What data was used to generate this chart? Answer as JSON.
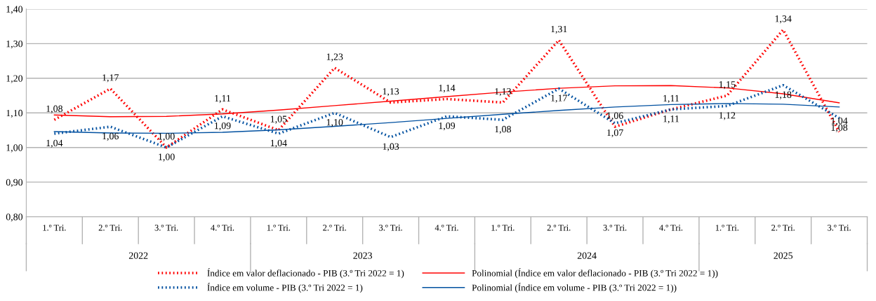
{
  "chart_data": {
    "type": "line",
    "categories": [
      "1.º Tri.",
      "2.º Tri.",
      "3.º Tri.",
      "4.º Tri.",
      "1.º Tri.",
      "2.º Tri.",
      "3.º Tri.",
      "4.º Tri.",
      "1.º Tri.",
      "2.º Tri.",
      "3.º Tri.",
      "4.º Tri.",
      "1.º Tri.",
      "2.º Tri.",
      "3.º Tri."
    ],
    "annotations": [
      "2022",
      "2023",
      "2024",
      "2025"
    ],
    "ylim": [
      0.8,
      1.4
    ],
    "yticks": [
      {
        "value": 0.8,
        "label": "0,80"
      },
      {
        "value": 0.9,
        "label": "0,90"
      },
      {
        "value": 1.0,
        "label": "1,00"
      },
      {
        "value": 1.1,
        "label": "1,10"
      },
      {
        "value": 1.2,
        "label": "1,20"
      },
      {
        "value": 1.3,
        "label": "1,30"
      },
      {
        "value": 1.4,
        "label": "1,40"
      }
    ],
    "grid": "y",
    "legend": "bottom",
    "marker": "none",
    "series": [
      {
        "name": "Índice em valor deflacionado - PIB (3.º Tri 2022 = 1)",
        "color": "#ff0000",
        "line_style": "dotted",
        "values": [
          1.08,
          1.17,
          1.0,
          1.11,
          1.05,
          1.23,
          1.13,
          1.14,
          1.13,
          1.31,
          1.06,
          1.11,
          1.15,
          1.34,
          1.045
        ],
        "value_labels": [
          "1,08",
          "1,17",
          "1,00",
          "1,11",
          "1,05",
          "1,23",
          "1,13",
          "1,14",
          "1,13",
          "1,31",
          "1,06",
          "1,11",
          "1,15",
          "1,34",
          "1,04"
        ]
      },
      {
        "name": "Polinomial (Índice em valor deflacionado - PIB (3.º Tri 2022 = 1))",
        "color": "#ff0000",
        "line_style": "solid",
        "values": [
          1.094,
          1.089,
          1.09,
          1.097,
          1.108,
          1.121,
          1.134,
          1.147,
          1.16,
          1.171,
          1.178,
          1.179,
          1.172,
          1.155,
          1.129
        ]
      },
      {
        "name": "Índice em volume - PIB (3.º Tri 2022 = 1)",
        "color": "#0050a0",
        "line_style": "dotted",
        "values": [
          1.04,
          1.06,
          1.0,
          1.09,
          1.04,
          1.1,
          1.03,
          1.09,
          1.08,
          1.17,
          1.07,
          1.11,
          1.12,
          1.18,
          1.085
        ],
        "value_labels": [
          "1,04",
          "1,06",
          "1,00",
          "1,09",
          "1,04",
          "1,10",
          "1,03",
          "1,09",
          "1,08",
          "1,17",
          "1,07",
          "1,11",
          "1,12",
          "1,18",
          "1,08"
        ]
      },
      {
        "name": "Polinomial (Índice em volume - PIB (3.º Tri 2022 = 1))",
        "color": "#0050a0",
        "line_style": "solid",
        "values": [
          1.046,
          1.042,
          1.041,
          1.044,
          1.051,
          1.061,
          1.072,
          1.084,
          1.096,
          1.107,
          1.117,
          1.124,
          1.127,
          1.125,
          1.117
        ]
      }
    ]
  }
}
